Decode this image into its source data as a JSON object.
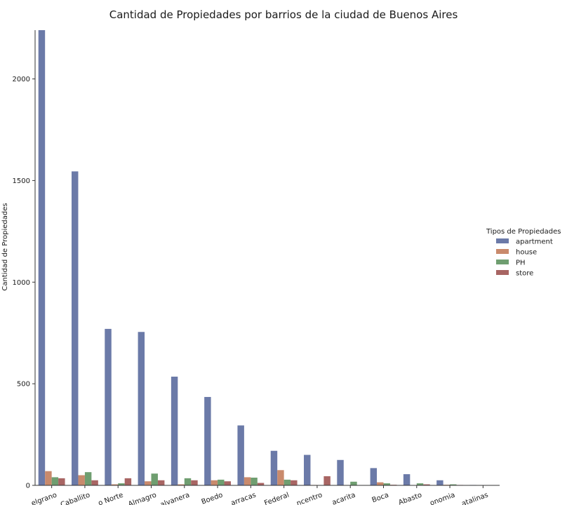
{
  "chart_data": {
    "type": "bar",
    "title": "Cantidad de Propiedades por barrios de la ciudad de Buenos Aires",
    "xlabel": "",
    "ylabel": "Cantidad de Propiedades",
    "ylim": [
      0,
      2240
    ],
    "yticks": [
      0,
      500,
      1000,
      1500,
      2000
    ],
    "grid": false,
    "legend_position": "right",
    "legend_title": "Tipos de Propiedades",
    "categories": [
      "Belgrano",
      "Caballito",
      "Palermo Norte",
      "Almagro",
      "Balvanera",
      "Boedo",
      "Barracas",
      "Parque Federal",
      "Centro / Microcentro",
      "Colegiales/Chacarita",
      "Boca",
      "Abasto",
      "Agronomia",
      "Catalinas"
    ],
    "category_labels_visible": [
      "elgrano",
      "Caballito",
      "o Norte",
      "Almagro",
      "alvanera",
      "Boedo",
      "arracas",
      "Federal",
      "ncentro",
      "acarita",
      "Boca",
      "Abasto",
      "onomia",
      "atalinas"
    ],
    "series": [
      {
        "name": "apartment",
        "color": "#6b7aa8",
        "values": [
          2240,
          1545,
          770,
          755,
          535,
          435,
          295,
          170,
          150,
          125,
          85,
          55,
          25,
          2
        ]
      },
      {
        "name": "house",
        "color": "#c98a6c",
        "values": [
          70,
          50,
          5,
          20,
          5,
          25,
          40,
          75,
          2,
          0,
          15,
          0,
          3,
          0
        ]
      },
      {
        "name": "PH",
        "color": "#6f9e70",
        "values": [
          40,
          65,
          10,
          58,
          35,
          28,
          38,
          28,
          0,
          18,
          10,
          10,
          5,
          0
        ]
      },
      {
        "name": "store",
        "color": "#a86563",
        "values": [
          35,
          25,
          35,
          25,
          25,
          20,
          12,
          25,
          45,
          0,
          3,
          5,
          2,
          0
        ]
      }
    ]
  }
}
